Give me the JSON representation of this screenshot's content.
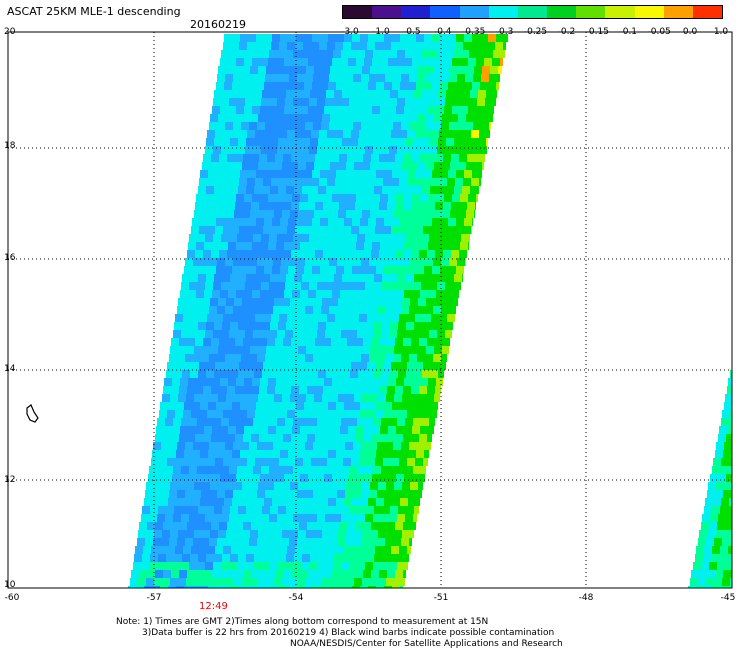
{
  "header": {
    "title": "ASCAT 25KM MLE-1 descending",
    "date": "20160219"
  },
  "legend": {
    "labels": [
      "-3.0",
      "-1.0",
      "-0.5",
      "-0.4",
      "-0.35",
      "-0.3",
      "-0.25",
      "-0.2",
      "-0.15",
      "-0.1",
      "-0.05",
      "0.0",
      "1.0"
    ],
    "colors": [
      "#2a0a30",
      "#4a1090",
      "#2020d0",
      "#1060ff",
      "#20a0ff",
      "#00f0f0",
      "#00e890",
      "#00d020",
      "#60e000",
      "#c8f000",
      "#f8f800",
      "#ffa000",
      "#ff3000"
    ]
  },
  "map": {
    "lat_labels": [
      "20",
      "18",
      "16",
      "14",
      "12",
      "10"
    ],
    "lon_labels": [
      "-60",
      "-57",
      "-54",
      "-51",
      "-48",
      "-45"
    ],
    "time_label": "12:49",
    "colors": {
      "deep_blue": "#1e90ff",
      "blue": "#20b0ff",
      "cyan": "#00f0f0",
      "teal": "#00ff99",
      "green": "#00e000",
      "yellow_green": "#a0f000",
      "yellow": "#f8f800",
      "orange": "#ffa000",
      "grid": "#000000",
      "time_label": "#d01010"
    }
  },
  "notes": {
    "line1": "Note: 1) Times are GMT 2)Times along bottom correspond to measurement at 15N",
    "line2": "3)Data buffer is 22 hrs from 20160219 4) Black wind barbs indicate possible contamination",
    "line3": "NOAA/NESDIS/Center for Satellite Applications and Research"
  }
}
